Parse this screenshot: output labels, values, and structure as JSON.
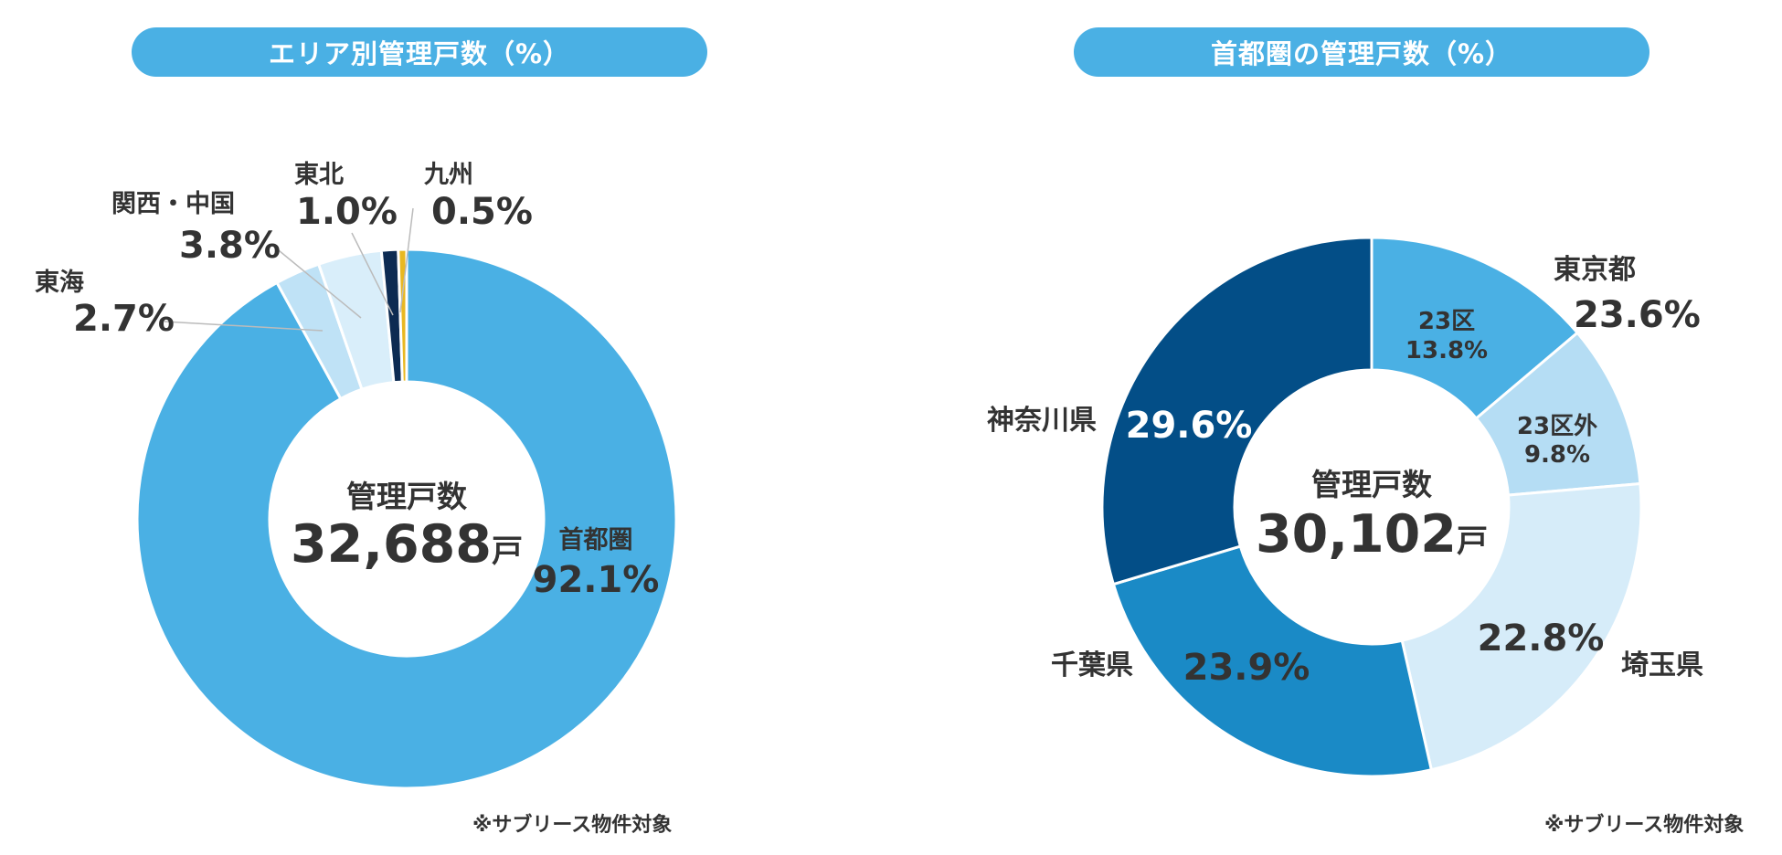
{
  "chart_data": [
    {
      "type": "pie",
      "title": "エリア別管理戸数（%）",
      "center_label": "管理戸数",
      "center_value": "32,688",
      "center_unit": "戸",
      "note": "※サブリース物件対象",
      "slices": [
        {
          "name": "首都圏",
          "value": 92.1,
          "label": "92.1%",
          "color": "#4ab0e4"
        },
        {
          "name": "東海",
          "value": 2.7,
          "label": "2.7%",
          "color": "#bfe2f6"
        },
        {
          "name": "関西・中国",
          "value": 3.8,
          "label": "3.8%",
          "color": "#d9eefa"
        },
        {
          "name": "東北",
          "value": 1.0,
          "label": "1.0%",
          "color": "#0d2b52"
        },
        {
          "name": "九州",
          "value": 0.5,
          "label": "0.5%",
          "color": "#e8b822"
        }
      ]
    },
    {
      "type": "pie",
      "title": "首都圏の管理戸数（%）",
      "center_label": "管理戸数",
      "center_value": "30,102",
      "center_unit": "戸",
      "note": "※サブリース物件対象",
      "group_label": {
        "name": "東京都",
        "label": "23.6%"
      },
      "slices": [
        {
          "name": "23区",
          "value": 13.8,
          "label": "13.8%",
          "color": "#4ab0e4"
        },
        {
          "name": "23区外",
          "value": 9.8,
          "label": "9.8%",
          "color": "#b5ddf4"
        },
        {
          "name": "埼玉県",
          "value": 22.8,
          "label": "22.8%",
          "color": "#d6ecf9"
        },
        {
          "name": "千葉県",
          "value": 23.9,
          "label": "23.9%",
          "color": "#1a8ac6"
        },
        {
          "name": "神奈川県",
          "value": 29.6,
          "label": "29.6%",
          "color": "#034e87"
        }
      ]
    }
  ]
}
